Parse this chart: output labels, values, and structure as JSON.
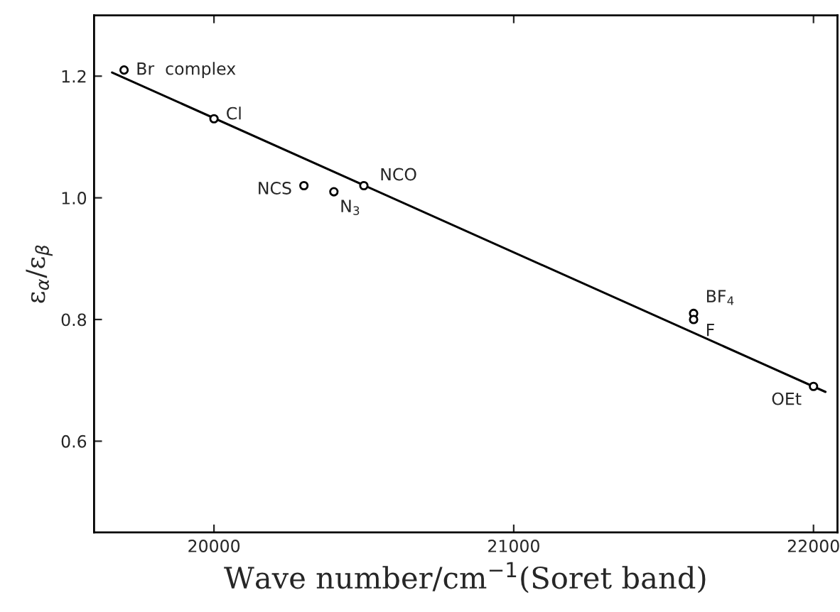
{
  "chart_data": {
    "type": "scatter",
    "xlabel": "Wave number/cm$^{−1}$(Soret band)",
    "ylabel": "ε$_{α}$/ε$_{β}$",
    "xlim": [
      19600,
      22080
    ],
    "xticks": [
      20000,
      21000,
      22000
    ],
    "ylim": [
      0.45,
      1.3
    ],
    "yticks": [
      0.6,
      0.8,
      {
        "value": 1.0,
        "label": "1.0"
      },
      1.2
    ],
    "grid": false,
    "legend": false,
    "marker": "circle",
    "series": [
      {
        "color": "#000000",
        "x": [
          19700,
          20000,
          20300,
          20400,
          20500,
          21600,
          21600,
          22000
        ],
        "values": [
          1.21,
          1.13,
          1.02,
          1.01,
          1.02,
          0.81,
          0.8,
          0.69
        ]
      },
      {
        "type": "line",
        "color": "#000000",
        "x": [
          19660,
          22040
        ],
        "values": [
          1.206,
          0.681
        ],
        "line_style": "solid",
        "marker": "none"
      }
    ],
    "annotations": [
      {
        "text": "Br  complex",
        "x": 19700,
        "y": 1.21
      },
      {
        "text": "Cl",
        "x": 20000,
        "y": 1.13
      },
      {
        "text": "NCS",
        "x": 20300,
        "y": 1.02
      },
      {
        "text": "N$_{3}$",
        "x": 20400,
        "y": 1.01
      },
      {
        "text": "NCO",
        "x": 20500,
        "y": 1.02
      },
      {
        "text": "BF$_{4}$",
        "x": 21600,
        "y": 0.81
      },
      {
        "text": "F",
        "x": 21600,
        "y": 0.8
      },
      {
        "text": "OEt",
        "x": 22000,
        "y": 0.69
      }
    ]
  }
}
